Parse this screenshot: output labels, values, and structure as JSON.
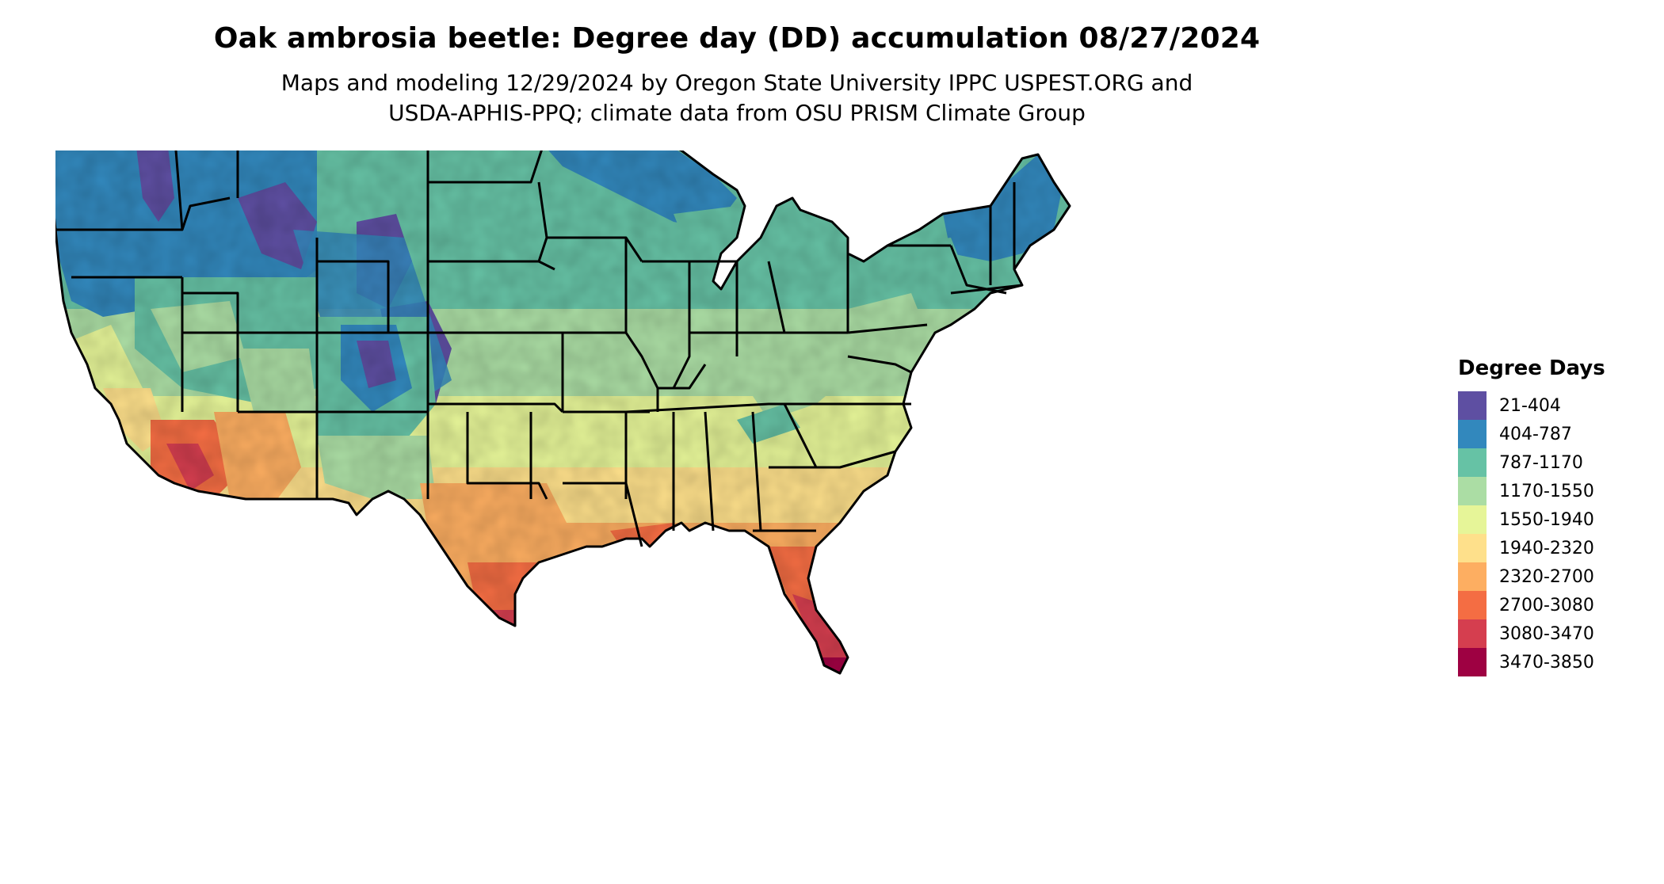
{
  "title": "Oak ambrosia beetle: Degree day (DD) accumulation 08/27/2024",
  "subtitle_line1": "Maps and modeling 12/29/2024 by Oregon State University IPPC USPEST.ORG and",
  "subtitle_line2": "USDA-APHIS-PPQ; climate data from OSU PRISM Climate Group",
  "legend": {
    "title": "Degree Days",
    "items": [
      {
        "label": "21-404",
        "color": "#5e4fa2"
      },
      {
        "label": "404-787",
        "color": "#3288bd"
      },
      {
        "label": "787-1170",
        "color": "#66c2a5"
      },
      {
        "label": "1170-1550",
        "color": "#abdda4"
      },
      {
        "label": "1550-1940",
        "color": "#e6f598"
      },
      {
        "label": "1940-2320",
        "color": "#fee08b"
      },
      {
        "label": "2320-2700",
        "color": "#fdae61"
      },
      {
        "label": "2700-3080",
        "color": "#f46d43"
      },
      {
        "label": "3080-3470",
        "color": "#d53e4f"
      },
      {
        "label": "3470-3850",
        "color": "#9e0142"
      }
    ]
  },
  "map_colors": {
    "boundary": "#000000"
  }
}
